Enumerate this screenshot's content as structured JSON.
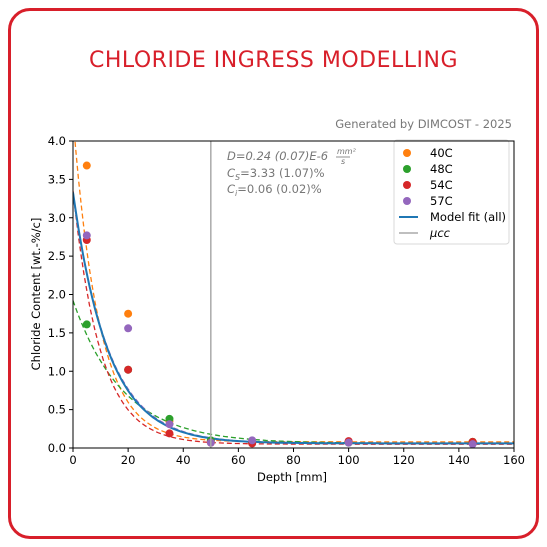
{
  "page": {
    "title": "CHLORIDE INGRESS MODELLING"
  },
  "chart_data": {
    "type": "scatter",
    "subtitle": "Generated by DIMCOST - 2025",
    "xlabel": "Depth [mm]",
    "ylabel": "Chloride Content [wt.-%/c]",
    "xlim": [
      0,
      160
    ],
    "ylim": [
      0,
      4.0
    ],
    "xticks": [
      0,
      20,
      40,
      60,
      80,
      100,
      120,
      140,
      160
    ],
    "yticks": [
      0.0,
      0.5,
      1.0,
      1.5,
      2.0,
      2.5,
      3.0,
      3.5,
      4.0
    ],
    "xtick_labels": [
      "0",
      "20",
      "40",
      "60",
      "80",
      "100",
      "120",
      "140",
      "160"
    ],
    "ytick_labels": [
      "0.0",
      "0.5",
      "1.0",
      "1.5",
      "2.0",
      "2.5",
      "3.0",
      "3.5",
      "4.0"
    ],
    "grid": false,
    "legend_position": "top-right",
    "vline_x": 50,
    "vline_label": "μcc",
    "annotations": {
      "line1_a": "D=0.24 (0.07)E-6 ",
      "line1_unit_num": "mm²",
      "line1_unit_den": "s",
      "line2_sym": "C",
      "line2_sub": "S",
      "line2_rest": "=3.33 (1.07)%",
      "line3_sym": "C",
      "line3_sub": "i",
      "line3_rest": "=0.06 (0.02)%"
    },
    "series": [
      {
        "name": "40C",
        "color": "#ff7f0e",
        "x": [
          5,
          20,
          35,
          50,
          65,
          100,
          145
        ],
        "y": [
          3.68,
          1.75,
          0.35,
          0.08,
          0.07,
          0.08,
          0.08
        ],
        "fit": {
          "cs": 4.3,
          "ci": 0.08,
          "k": 0.105
        }
      },
      {
        "name": "48C",
        "color": "#2ca02c",
        "x": [
          5,
          20,
          35,
          50,
          65,
          100,
          145
        ],
        "y": [
          1.61,
          1.02,
          0.38,
          0.1,
          0.07,
          0.07,
          0.08
        ],
        "fit": {
          "cs": 1.92,
          "ci": 0.06,
          "k": 0.055
        }
      },
      {
        "name": "54C",
        "color": "#d62728",
        "x": [
          5,
          20,
          35,
          50,
          65,
          100,
          145
        ],
        "y": [
          2.71,
          1.02,
          0.19,
          0.07,
          0.06,
          0.09,
          0.08
        ],
        "fit": {
          "cs": 3.35,
          "ci": 0.05,
          "k": 0.1
        }
      },
      {
        "name": "57C",
        "color": "#9467bd",
        "x": [
          5,
          20,
          35,
          50,
          65,
          100,
          145
        ],
        "y": [
          2.77,
          1.56,
          0.31,
          0.07,
          0.1,
          0.07,
          0.05
        ],
        "fit": {
          "cs": 3.3,
          "ci": 0.06,
          "k": 0.076
        }
      }
    ],
    "model_fit": {
      "name": "Model fit (all)",
      "color": "#1f77b4",
      "cs": 3.33,
      "ci": 0.06,
      "k": 0.078
    }
  }
}
